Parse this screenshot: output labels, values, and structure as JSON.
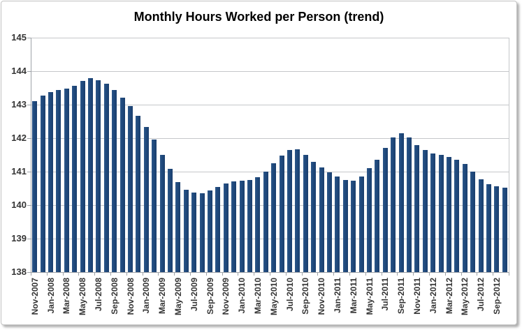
{
  "window": {
    "description": "Excel-style bar chart screenshot with drop shadow border"
  },
  "chart_data": {
    "type": "bar",
    "title": "Monthly Hours Worked per Person (trend)",
    "xlabel": "",
    "ylabel": "",
    "ylim": [
      138,
      145
    ],
    "ytick_step": 1,
    "ytick_labels": [
      "145",
      "144",
      "143",
      "142",
      "141",
      "140",
      "139",
      "138"
    ],
    "grid": true,
    "legend": "none",
    "xtick_label_interval": 2,
    "xtick_labels_shown": [
      "Nov-2007",
      "Jan-2008",
      "Mar-2008",
      "May-2008",
      "Jul-2008",
      "Sep-2008",
      "Nov-2008",
      "Jan-2009",
      "Mar-2009",
      "May-2009",
      "Jul-2009",
      "Sep-2009",
      "Nov-2009",
      "Jan-2010",
      "Mar-2010",
      "May-2010",
      "Jul-2010",
      "Sep-2010",
      "Nov-2010",
      "Jan-2011",
      "Mar-2011",
      "May-2011",
      "Jul-2011",
      "Sep-2011",
      "Nov-2011",
      "Jan-2012",
      "Mar-2012",
      "May-2012",
      "Jul-2012",
      "Sep-2012"
    ],
    "categories": [
      "Nov-2007",
      "Dec-2007",
      "Jan-2008",
      "Feb-2008",
      "Mar-2008",
      "Apr-2008",
      "May-2008",
      "Jun-2008",
      "Jul-2008",
      "Aug-2008",
      "Sep-2008",
      "Oct-2008",
      "Nov-2008",
      "Dec-2008",
      "Jan-2009",
      "Feb-2009",
      "Mar-2009",
      "Apr-2009",
      "May-2009",
      "Jun-2009",
      "Jul-2009",
      "Aug-2009",
      "Sep-2009",
      "Oct-2009",
      "Nov-2009",
      "Dec-2009",
      "Jan-2010",
      "Feb-2010",
      "Mar-2010",
      "Apr-2010",
      "May-2010",
      "Jun-2010",
      "Jul-2010",
      "Aug-2010",
      "Sep-2010",
      "Oct-2010",
      "Nov-2010",
      "Dec-2010",
      "Jan-2011",
      "Feb-2011",
      "Mar-2011",
      "Apr-2011",
      "May-2011",
      "Jun-2011",
      "Jul-2011",
      "Aug-2011",
      "Sep-2011",
      "Oct-2011",
      "Nov-2011",
      "Dec-2011",
      "Jan-2012",
      "Feb-2012",
      "Mar-2012",
      "Apr-2012",
      "May-2012",
      "Jun-2012",
      "Jul-2012",
      "Aug-2012",
      "Sep-2012",
      "Oct-2012"
    ],
    "values": [
      143.1,
      143.28,
      143.37,
      143.43,
      143.48,
      143.56,
      143.7,
      143.79,
      143.74,
      143.63,
      143.44,
      143.21,
      142.95,
      142.67,
      142.33,
      141.95,
      141.5,
      141.08,
      140.68,
      140.46,
      140.38,
      140.35,
      140.44,
      140.55,
      140.64,
      140.7,
      140.73,
      140.75,
      140.84,
      141.0,
      141.25,
      141.49,
      141.65,
      141.67,
      141.51,
      141.29,
      141.12,
      140.98,
      140.86,
      140.76,
      140.74,
      140.86,
      141.1,
      141.36,
      141.71,
      142.02,
      142.15,
      142.02,
      141.79,
      141.64,
      141.54,
      141.5,
      141.43,
      141.35,
      141.22,
      141.0,
      140.77,
      140.62,
      140.56,
      140.53
    ],
    "colors": {
      "bar": "#1F497D",
      "bar_edge": "#17375E",
      "gridline": "#C5C7CA",
      "axis": "#9FA3A8",
      "tick": "#9FA3A8",
      "label_text": "#353535",
      "title_text": "#000000",
      "frame_border": "#C2C2C2"
    }
  }
}
